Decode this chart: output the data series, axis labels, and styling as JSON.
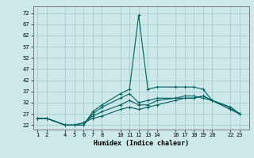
{
  "title": "",
  "xlabel": "Humidex (Indice chaleur)",
  "x_ticks": [
    1,
    2,
    4,
    5,
    6,
    7,
    8,
    10,
    11,
    12,
    13,
    14,
    16,
    17,
    18,
    19,
    20,
    22,
    23
  ],
  "ylim_min": 20,
  "ylim_max": 75,
  "yticks": [
    22,
    27,
    32,
    37,
    42,
    47,
    52,
    57,
    62,
    67,
    72
  ],
  "bg_color": "#cce8e8",
  "grid_color": "#aad0d0",
  "line_color": "#006060",
  "curves": [
    {
      "x": [
        1,
        2,
        4,
        5,
        6,
        7,
        8,
        10,
        11,
        12,
        13,
        14,
        16,
        17,
        18,
        19,
        20,
        22,
        23
      ],
      "y": [
        25,
        25,
        22,
        22,
        22,
        28,
        31,
        36,
        38,
        71,
        38,
        39,
        39,
        39,
        39,
        38,
        33,
        29,
        27
      ]
    },
    {
      "x": [
        1,
        2,
        4,
        5,
        6,
        7,
        8,
        10,
        11,
        12,
        13,
        14,
        16,
        17,
        18,
        19,
        20,
        22,
        23
      ],
      "y": [
        25,
        25,
        22,
        22,
        22,
        27,
        30,
        34,
        36,
        32,
        33,
        34,
        34,
        35,
        35,
        34,
        33,
        29,
        27
      ]
    },
    {
      "x": [
        1,
        2,
        4,
        5,
        6,
        7,
        8,
        10,
        11,
        12,
        13,
        14,
        16,
        17,
        18,
        19,
        20,
        22,
        23
      ],
      "y": [
        25,
        25,
        22,
        22,
        23,
        26,
        28,
        31,
        33,
        31,
        31,
        33,
        34,
        34,
        34,
        35,
        33,
        30,
        27
      ]
    },
    {
      "x": [
        1,
        2,
        4,
        5,
        6,
        7,
        8,
        10,
        11,
        12,
        13,
        14,
        16,
        17,
        18,
        19,
        20,
        22,
        23
      ],
      "y": [
        25,
        25,
        22,
        22,
        23,
        25,
        26,
        29,
        30,
        29,
        30,
        31,
        33,
        34,
        34,
        35,
        33,
        30,
        27
      ]
    }
  ]
}
